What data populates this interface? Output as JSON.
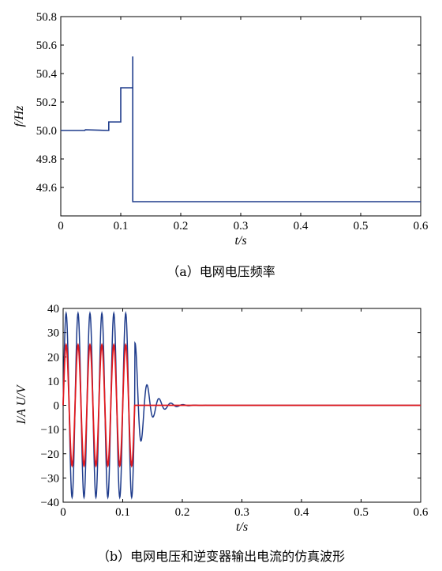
{
  "chart_data": [
    {
      "type": "line",
      "caption": "（a）电网电压频率",
      "ylabel": "f/Hz",
      "xlabel": "t/s",
      "xlim": [
        0,
        0.6
      ],
      "ylim": [
        49.4,
        50.8
      ],
      "xticks": [
        0,
        0.1,
        0.2,
        0.3,
        0.4,
        0.5,
        0.6
      ],
      "xtick_labels": [
        "0",
        "0.1",
        "0.2",
        "0.3",
        "0.4",
        "0.5",
        "0.6"
      ],
      "yticks": [
        49.6,
        49.8,
        50.0,
        50.2,
        50.4,
        50.6,
        50.8
      ],
      "ytick_labels": [
        "49.6",
        "49.8",
        "50.0",
        "50.2",
        "50.4",
        "50.6",
        "50.8"
      ],
      "grid": false,
      "color": "#1f3c8c",
      "series": [
        {
          "x": [
            0,
            0.04,
            0.041,
            0.08,
            0.081,
            0.08,
            0.08,
            0.1,
            0.1,
            0.12,
            0.12,
            0.12,
            0.6
          ],
          "y": [
            50.0,
            50.0,
            50.005,
            50.0,
            50.0,
            50.0,
            50.06,
            50.06,
            50.3,
            50.3,
            50.52,
            49.5,
            49.5
          ]
        }
      ]
    },
    {
      "type": "line",
      "caption": "（b）电网电压和逆变器输出电流的仿真波形",
      "ylabel": "I/A  U/V",
      "xlabel": "t/s",
      "xlim": [
        0,
        0.6
      ],
      "ylim": [
        -40,
        40
      ],
      "xticks": [
        0,
        0.1,
        0.2,
        0.3,
        0.4,
        0.5,
        0.6
      ],
      "xtick_labels": [
        "0",
        "0.1",
        "0.2",
        "0.3",
        "0.4",
        "0.5",
        "0.6"
      ],
      "yticks": [
        -40,
        -30,
        -20,
        -10,
        0,
        10,
        20,
        30,
        40
      ],
      "ytick_labels": [
        "−40",
        "−30",
        "−20",
        "−10",
        "0",
        "10",
        "20",
        "30",
        "40"
      ],
      "grid": false,
      "series": [
        {
          "color": "#1f3c8c",
          "waveform": {
            "amplitude": 38,
            "frequency_hz": 50,
            "stop_s": 0.12,
            "decay_amplitude": 27,
            "decay_tau_s": 0.018,
            "decay_until_s": 0.24
          }
        },
        {
          "color": "#e0191e",
          "waveform": {
            "amplitude": 25,
            "frequency_hz": 50,
            "stop_s": 0.12
          }
        }
      ]
    }
  ]
}
